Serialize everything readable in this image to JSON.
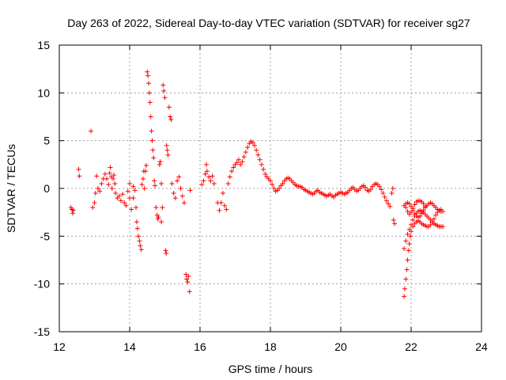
{
  "chart_data": {
    "type": "scatter",
    "title": "Day 263 of 2022, Sidereal Day-to-day VTEC variation (SDTVAR) for receiver sg27",
    "xlabel": "GPS time / hours",
    "ylabel": "SDTVAR / TECUs",
    "xlim": [
      12,
      24
    ],
    "ylim": [
      -15,
      15
    ],
    "xticks": [
      "12",
      "14",
      "16",
      "18",
      "20",
      "22",
      "24"
    ],
    "yticks": [
      "15",
      "10",
      "5",
      "0",
      "-5",
      "-10",
      "-15"
    ],
    "grid": true,
    "marker": "+",
    "color": "#ff0000",
    "series": [
      {
        "name": "sg27",
        "points": [
          [
            12.33,
            -2.0
          ],
          [
            12.36,
            -2.2
          ],
          [
            12.38,
            -2.6
          ],
          [
            12.4,
            -2.3
          ],
          [
            12.55,
            2.0
          ],
          [
            12.57,
            1.3
          ],
          [
            12.9,
            6.0
          ],
          [
            12.95,
            -2.0
          ],
          [
            13.0,
            -1.5
          ],
          [
            13.03,
            -0.5
          ],
          [
            13.06,
            1.3
          ],
          [
            13.1,
            0.0
          ],
          [
            13.15,
            -0.3
          ],
          [
            13.2,
            0.5
          ],
          [
            13.25,
            1.0
          ],
          [
            13.3,
            1.5
          ],
          [
            13.35,
            1.0
          ],
          [
            13.4,
            0.4
          ],
          [
            13.43,
            1.6
          ],
          [
            13.45,
            2.2
          ],
          [
            13.48,
            1.2
          ],
          [
            13.5,
            0.0
          ],
          [
            13.53,
            1.0
          ],
          [
            13.55,
            1.4
          ],
          [
            13.58,
            0.5
          ],
          [
            13.6,
            -0.5
          ],
          [
            13.65,
            -1.0
          ],
          [
            13.7,
            -0.8
          ],
          [
            13.75,
            -1.3
          ],
          [
            13.8,
            -0.6
          ],
          [
            13.85,
            -1.5
          ],
          [
            13.9,
            -1.8
          ],
          [
            13.95,
            -0.3
          ],
          [
            14.0,
            -1.0
          ],
          [
            14.0,
            0.5
          ],
          [
            14.05,
            -2.2
          ],
          [
            14.1,
            -1.0
          ],
          [
            14.1,
            0.2
          ],
          [
            14.15,
            -0.2
          ],
          [
            14.18,
            -2.0
          ],
          [
            14.2,
            -3.5
          ],
          [
            14.22,
            -4.2
          ],
          [
            14.25,
            -5.0
          ],
          [
            14.28,
            -5.5
          ],
          [
            14.3,
            -6.0
          ],
          [
            14.33,
            -6.4
          ],
          [
            14.35,
            0.4
          ],
          [
            14.38,
            1.0
          ],
          [
            14.4,
            1.8
          ],
          [
            14.42,
            0.0
          ],
          [
            14.45,
            1.8
          ],
          [
            14.47,
            2.4
          ],
          [
            14.5,
            12.2
          ],
          [
            14.52,
            11.8
          ],
          [
            14.54,
            11.0
          ],
          [
            14.56,
            10.0
          ],
          [
            14.58,
            9.0
          ],
          [
            14.6,
            7.5
          ],
          [
            14.62,
            6.0
          ],
          [
            14.64,
            5.0
          ],
          [
            14.66,
            4.0
          ],
          [
            14.68,
            3.2
          ],
          [
            14.7,
            0.8
          ],
          [
            14.72,
            0.3
          ],
          [
            14.75,
            -2.0
          ],
          [
            14.78,
            -2.8
          ],
          [
            14.8,
            -3.2
          ],
          [
            14.82,
            -3.0
          ],
          [
            14.85,
            2.5
          ],
          [
            14.87,
            2.8
          ],
          [
            14.9,
            0.5
          ],
          [
            14.9,
            -3.5
          ],
          [
            14.93,
            -2.0
          ],
          [
            14.95,
            10.8
          ],
          [
            14.97,
            10.2
          ],
          [
            15.0,
            9.5
          ],
          [
            15.02,
            -6.5
          ],
          [
            15.04,
            -6.8
          ],
          [
            15.05,
            4.5
          ],
          [
            15.07,
            4.0
          ],
          [
            15.09,
            3.5
          ],
          [
            15.12,
            8.5
          ],
          [
            15.15,
            7.5
          ],
          [
            15.18,
            7.2
          ],
          [
            15.2,
            0.5
          ],
          [
            15.25,
            -0.5
          ],
          [
            15.3,
            -1.0
          ],
          [
            15.35,
            0.8
          ],
          [
            15.4,
            1.2
          ],
          [
            15.45,
            0.0
          ],
          [
            15.5,
            -0.8
          ],
          [
            15.55,
            -1.5
          ],
          [
            15.6,
            -9.0
          ],
          [
            15.62,
            -9.5
          ],
          [
            15.65,
            -9.8
          ],
          [
            15.67,
            -9.2
          ],
          [
            15.7,
            -10.8
          ],
          [
            15.72,
            -0.2
          ],
          [
            16.05,
            0.4
          ],
          [
            16.1,
            0.8
          ],
          [
            16.15,
            1.5
          ],
          [
            16.18,
            2.5
          ],
          [
            16.2,
            1.8
          ],
          [
            16.25,
            1.2
          ],
          [
            16.3,
            0.8
          ],
          [
            16.35,
            1.3
          ],
          [
            16.4,
            0.5
          ],
          [
            16.5,
            -1.5
          ],
          [
            16.55,
            -2.3
          ],
          [
            16.6,
            -1.5
          ],
          [
            16.65,
            -0.5
          ],
          [
            16.7,
            -1.8
          ],
          [
            16.75,
            -2.2
          ],
          [
            16.8,
            0.5
          ],
          [
            16.85,
            1.2
          ],
          [
            16.9,
            1.8
          ],
          [
            16.95,
            2.2
          ],
          [
            17.0,
            2.5
          ],
          [
            17.05,
            2.7
          ],
          [
            17.1,
            3.0
          ],
          [
            17.15,
            2.5
          ],
          [
            17.2,
            2.8
          ],
          [
            17.25,
            3.3
          ],
          [
            17.3,
            3.8
          ],
          [
            17.35,
            4.3
          ],
          [
            17.4,
            4.7
          ],
          [
            17.45,
            4.9
          ],
          [
            17.5,
            4.8
          ],
          [
            17.55,
            4.5
          ],
          [
            17.6,
            4.0
          ],
          [
            17.65,
            3.5
          ],
          [
            17.7,
            3.0
          ],
          [
            17.75,
            2.5
          ],
          [
            17.8,
            2.0
          ],
          [
            17.85,
            1.5
          ],
          [
            17.9,
            1.2
          ],
          [
            17.95,
            1.0
          ],
          [
            18.0,
            0.8
          ],
          [
            18.05,
            0.4
          ],
          [
            18.1,
            0.0
          ],
          [
            18.15,
            -0.3
          ],
          [
            18.2,
            -0.2
          ],
          [
            18.25,
            0.0
          ],
          [
            18.3,
            0.3
          ],
          [
            18.35,
            0.5
          ],
          [
            18.4,
            0.8
          ],
          [
            18.45,
            1.0
          ],
          [
            18.5,
            1.1
          ],
          [
            18.55,
            1.0
          ],
          [
            18.6,
            0.8
          ],
          [
            18.65,
            0.6
          ],
          [
            18.7,
            0.4
          ],
          [
            18.75,
            0.3
          ],
          [
            18.8,
            0.2
          ],
          [
            18.85,
            0.2
          ],
          [
            18.9,
            0.1
          ],
          [
            18.95,
            -0.1
          ],
          [
            19.0,
            -0.2
          ],
          [
            19.05,
            -0.3
          ],
          [
            19.1,
            -0.4
          ],
          [
            19.15,
            -0.5
          ],
          [
            19.2,
            -0.6
          ],
          [
            19.25,
            -0.5
          ],
          [
            19.3,
            -0.3
          ],
          [
            19.35,
            -0.2
          ],
          [
            19.4,
            -0.4
          ],
          [
            19.45,
            -0.5
          ],
          [
            19.5,
            -0.6
          ],
          [
            19.55,
            -0.7
          ],
          [
            19.6,
            -0.8
          ],
          [
            19.65,
            -0.7
          ],
          [
            19.7,
            -0.6
          ],
          [
            19.75,
            -0.8
          ],
          [
            19.8,
            -0.9
          ],
          [
            19.85,
            -0.7
          ],
          [
            19.9,
            -0.6
          ],
          [
            19.95,
            -0.5
          ],
          [
            20.0,
            -0.4
          ],
          [
            20.05,
            -0.5
          ],
          [
            20.1,
            -0.6
          ],
          [
            20.15,
            -0.5
          ],
          [
            20.2,
            -0.4
          ],
          [
            20.25,
            -0.2
          ],
          [
            20.3,
            0.0
          ],
          [
            20.35,
            0.1
          ],
          [
            20.4,
            -0.1
          ],
          [
            20.45,
            -0.3
          ],
          [
            20.5,
            -0.2
          ],
          [
            20.55,
            0.0
          ],
          [
            20.6,
            0.2
          ],
          [
            20.65,
            0.3
          ],
          [
            20.7,
            0.1
          ],
          [
            20.75,
            -0.2
          ],
          [
            20.8,
            -0.3
          ],
          [
            20.85,
            -0.1
          ],
          [
            20.9,
            0.2
          ],
          [
            20.95,
            0.4
          ],
          [
            21.0,
            0.5
          ],
          [
            21.05,
            0.4
          ],
          [
            21.1,
            0.2
          ],
          [
            21.15,
            -0.1
          ],
          [
            21.2,
            -0.5
          ],
          [
            21.25,
            -0.9
          ],
          [
            21.3,
            -1.3
          ],
          [
            21.35,
            -1.6
          ],
          [
            21.4,
            -1.9
          ],
          [
            21.45,
            -0.5
          ],
          [
            21.48,
            0.0
          ],
          [
            21.5,
            -3.3
          ],
          [
            21.53,
            -3.7
          ],
          [
            21.8,
            -11.3
          ],
          [
            21.82,
            -10.5
          ],
          [
            21.85,
            -9.5
          ],
          [
            21.88,
            -8.5
          ],
          [
            21.9,
            -7.5
          ],
          [
            21.93,
            -6.5
          ],
          [
            21.95,
            -5.8
          ],
          [
            21.98,
            -5.0
          ],
          [
            22.0,
            -4.5
          ],
          [
            22.05,
            -4.0
          ],
          [
            22.1,
            -3.7
          ],
          [
            22.15,
            -3.5
          ],
          [
            22.2,
            -3.4
          ],
          [
            22.25,
            -3.5
          ],
          [
            22.3,
            -3.7
          ],
          [
            22.35,
            -3.8
          ],
          [
            22.4,
            -3.9
          ],
          [
            22.45,
            -4.0
          ],
          [
            22.5,
            -4.0
          ],
          [
            22.55,
            -3.8
          ],
          [
            22.6,
            -3.5
          ],
          [
            22.65,
            -3.2
          ],
          [
            22.7,
            -2.8
          ],
          [
            22.75,
            -2.5
          ],
          [
            22.8,
            -2.3
          ],
          [
            22.85,
            -2.2
          ],
          [
            21.8,
            -6.3
          ],
          [
            21.85,
            -5.5
          ],
          [
            21.9,
            -4.8
          ],
          [
            21.95,
            -4.3
          ],
          [
            22.0,
            -3.8
          ],
          [
            22.05,
            -3.3
          ],
          [
            22.1,
            -2.9
          ],
          [
            22.15,
            -2.6
          ],
          [
            22.2,
            -2.4
          ],
          [
            22.25,
            -2.3
          ],
          [
            22.3,
            -2.4
          ],
          [
            22.35,
            -2.5
          ],
          [
            22.4,
            -2.7
          ],
          [
            22.45,
            -2.9
          ],
          [
            22.5,
            -3.1
          ],
          [
            22.55,
            -3.3
          ],
          [
            22.6,
            -3.5
          ],
          [
            22.65,
            -3.7
          ],
          [
            22.7,
            -3.8
          ],
          [
            22.75,
            -3.9
          ],
          [
            22.8,
            -4.0
          ],
          [
            22.85,
            -4.0
          ],
          [
            22.9,
            -4.0
          ],
          [
            21.8,
            -1.8
          ],
          [
            21.85,
            -1.6
          ],
          [
            21.9,
            -1.5
          ],
          [
            21.95,
            -1.6
          ],
          [
            22.0,
            -1.9
          ],
          [
            22.05,
            -2.3
          ],
          [
            22.1,
            -2.7
          ],
          [
            22.15,
            -2.9
          ],
          [
            22.2,
            -3.0
          ],
          [
            22.25,
            -2.9
          ],
          [
            22.3,
            -2.6
          ],
          [
            22.35,
            -2.3
          ],
          [
            22.4,
            -2.0
          ],
          [
            22.45,
            -1.8
          ],
          [
            22.5,
            -1.6
          ],
          [
            22.55,
            -1.5
          ],
          [
            22.6,
            -1.6
          ],
          [
            22.65,
            -1.8
          ],
          [
            22.7,
            -2.0
          ],
          [
            22.75,
            -2.2
          ],
          [
            22.8,
            -2.3
          ],
          [
            22.85,
            -2.4
          ],
          [
            22.9,
            -2.4
          ],
          [
            21.85,
            -2.0
          ],
          [
            21.9,
            -2.4
          ],
          [
            21.95,
            -2.7
          ],
          [
            22.0,
            -2.5
          ],
          [
            22.05,
            -2.1
          ],
          [
            22.1,
            -1.7
          ],
          [
            22.15,
            -1.4
          ],
          [
            22.2,
            -1.3
          ],
          [
            22.25,
            -1.3
          ],
          [
            22.3,
            -1.4
          ],
          [
            22.35,
            -1.6
          ],
          [
            22.4,
            -1.9
          ]
        ]
      }
    ]
  }
}
